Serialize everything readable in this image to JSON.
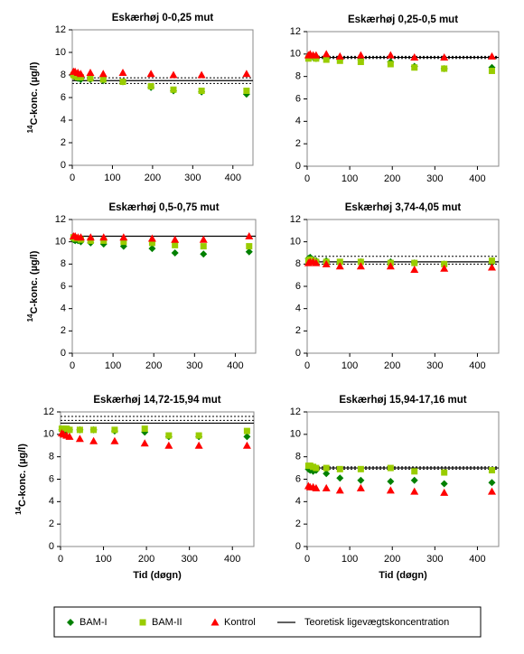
{
  "legend": [
    {
      "name": "BAM-I",
      "color": "#008000",
      "marker": "diamond"
    },
    {
      "name": "BAM-II",
      "color": "#99cc00",
      "marker": "square"
    },
    {
      "name": "Kontrol",
      "color": "#ff0000",
      "marker": "triangle"
    },
    {
      "name": "Teoretisk ligevægtskoncentration",
      "color": "#000000",
      "marker": "line"
    }
  ],
  "chart_data": [
    {
      "type": "scatter",
      "title": "Eskærhøj 0-0,25 mut",
      "y_label": {
        "sup": "14",
        "text": "C-konc. (µg/l)"
      },
      "x": [
        3,
        7,
        14,
        21,
        45,
        77,
        126,
        196,
        252,
        322,
        434
      ],
      "series": [
        {
          "values": [
            7.9,
            7.8,
            7.7,
            7.6,
            7.6,
            7.5,
            7.4,
            6.9,
            6.6,
            6.5,
            6.3
          ]
        },
        {
          "values": [
            8.0,
            7.9,
            7.8,
            7.8,
            7.7,
            7.6,
            7.4,
            7.0,
            6.7,
            6.6,
            6.6
          ]
        },
        {
          "values": [
            8.3,
            8.3,
            8.2,
            8.1,
            8.2,
            8.1,
            8.2,
            8.1,
            8.0,
            8.0,
            8.1
          ]
        }
      ],
      "reference": 7.5,
      "dotted_lines": [
        7.25,
        7.75
      ],
      "xlim": [
        0,
        450
      ],
      "xticks": [
        0,
        100,
        200,
        300,
        400
      ],
      "ylim": [
        0,
        12
      ],
      "yticks": [
        0,
        2,
        4,
        6,
        8,
        10,
        12
      ]
    },
    {
      "type": "scatter",
      "title": "Eskærhøj 0,25-0,5 mut",
      "x": [
        3,
        7,
        14,
        21,
        45,
        77,
        126,
        196,
        252,
        322,
        434
      ],
      "series": [
        {
          "values": [
            9.7,
            9.8,
            9.7,
            9.6,
            9.6,
            9.5,
            9.5,
            9.3,
            8.9,
            8.7,
            8.8
          ]
        },
        {
          "values": [
            9.6,
            9.8,
            9.8,
            9.6,
            9.5,
            9.4,
            9.3,
            9.1,
            8.8,
            8.7,
            8.5
          ]
        },
        {
          "values": [
            9.9,
            10.0,
            9.9,
            9.9,
            10.0,
            9.8,
            9.9,
            9.9,
            9.7,
            9.7,
            9.8
          ]
        }
      ],
      "reference": 9.7,
      "dotted_lines": [
        9.6,
        9.8
      ],
      "xlim": [
        0,
        450
      ],
      "xticks": [
        0,
        100,
        200,
        300,
        400
      ],
      "ylim": [
        0,
        12
      ],
      "yticks": [
        0,
        2,
        4,
        6,
        8,
        10,
        12
      ]
    },
    {
      "type": "scatter",
      "title": "Eskærhøj 0,5-0,75 mut",
      "y_label": {
        "sup": "14",
        "text": "C-konc. (µg/l)"
      },
      "x": [
        3,
        7,
        14,
        21,
        45,
        77,
        126,
        196,
        252,
        322,
        434
      ],
      "series": [
        {
          "values": [
            10.2,
            10.1,
            10.1,
            10.0,
            9.9,
            9.8,
            9.6,
            9.4,
            9.0,
            8.9,
            9.1
          ]
        },
        {
          "values": [
            10.4,
            10.3,
            10.3,
            10.2,
            10.1,
            10.1,
            10.0,
            9.9,
            9.7,
            9.6,
            9.6
          ]
        },
        {
          "values": [
            10.5,
            10.5,
            10.4,
            10.4,
            10.4,
            10.4,
            10.4,
            10.3,
            10.2,
            10.2,
            10.5
          ]
        }
      ],
      "reference": 10.5,
      "xlim": [
        0,
        450
      ],
      "xticks": [
        0,
        100,
        200,
        300,
        400
      ],
      "ylim": [
        0,
        12
      ],
      "yticks": [
        0,
        2,
        4,
        6,
        8,
        10,
        12
      ]
    },
    {
      "type": "scatter",
      "title": "Eskærhøj 3,74-4,05 mut",
      "x": [
        3,
        7,
        14,
        21,
        45,
        77,
        126,
        196,
        252,
        322,
        434
      ],
      "series": [
        {
          "values": [
            8.5,
            8.6,
            8.4,
            8.3,
            8.3,
            8.1,
            8.2,
            8.2,
            8.1,
            8.0,
            8.1
          ]
        },
        {
          "values": [
            8.3,
            8.4,
            8.3,
            8.2,
            8.2,
            8.2,
            8.2,
            8.1,
            8.1,
            8.0,
            8.3
          ]
        },
        {
          "values": [
            8.1,
            8.2,
            8.2,
            8.1,
            8.0,
            7.8,
            7.8,
            7.8,
            7.5,
            7.6,
            7.7
          ]
        }
      ],
      "reference": 8.2,
      "dotted_lines": [
        8.0,
        8.7
      ],
      "xlim": [
        0,
        450
      ],
      "xticks": [
        0,
        100,
        200,
        300,
        400
      ],
      "ylim": [
        0,
        12
      ],
      "yticks": [
        0,
        2,
        4,
        6,
        8,
        10,
        12
      ]
    },
    {
      "type": "scatter",
      "title": "Eskærhøj 14,72-15,94 mut",
      "y_label": {
        "sup": "14",
        "text": "C-konc. (µg/l)"
      },
      "x_label": "Tid (døgn)",
      "x": [
        3,
        7,
        14,
        21,
        45,
        77,
        126,
        196,
        252,
        322,
        434
      ],
      "series": [
        {
          "values": [
            10.4,
            10.4,
            10.3,
            10.4,
            10.4,
            10.4,
            10.3,
            10.2,
            9.8,
            9.8,
            9.8
          ]
        },
        {
          "values": [
            10.5,
            10.5,
            10.5,
            10.4,
            10.4,
            10.4,
            10.4,
            10.5,
            9.9,
            9.9,
            10.3
          ]
        },
        {
          "values": [
            10.1,
            10.0,
            9.9,
            9.8,
            9.6,
            9.4,
            9.4,
            9.2,
            9.0,
            9.0,
            9.0
          ]
        }
      ],
      "reference": 11.0,
      "dotted_lines": [
        11.25,
        11.6
      ],
      "xlim": [
        0,
        450
      ],
      "xticks": [
        0,
        100,
        200,
        300,
        400
      ],
      "ylim": [
        0,
        12
      ],
      "yticks": [
        0,
        2,
        4,
        6,
        8,
        10,
        12
      ]
    },
    {
      "type": "scatter",
      "title": "Eskærhøj 15,94-17,16 mut",
      "x_label": "Tid (døgn)",
      "x": [
        3,
        7,
        14,
        21,
        45,
        77,
        126,
        196,
        252,
        322,
        434
      ],
      "series": [
        {
          "values": [
            6.9,
            6.8,
            6.7,
            6.8,
            6.5,
            6.1,
            5.9,
            5.8,
            5.9,
            5.6,
            5.7
          ]
        },
        {
          "values": [
            7.2,
            7.2,
            7.1,
            7.0,
            7.0,
            6.9,
            6.9,
            7.0,
            6.7,
            6.6,
            6.8
          ]
        },
        {
          "values": [
            5.4,
            5.3,
            5.3,
            5.2,
            5.2,
            5.0,
            5.2,
            5.0,
            4.9,
            4.8,
            4.9
          ]
        }
      ],
      "reference": 7.0,
      "dotted_lines": [
        6.9,
        7.1
      ],
      "xlim": [
        0,
        450
      ],
      "xticks": [
        0,
        100,
        200,
        300,
        400
      ],
      "ylim": [
        0,
        12
      ],
      "yticks": [
        0,
        2,
        4,
        6,
        8,
        10,
        12
      ]
    }
  ]
}
